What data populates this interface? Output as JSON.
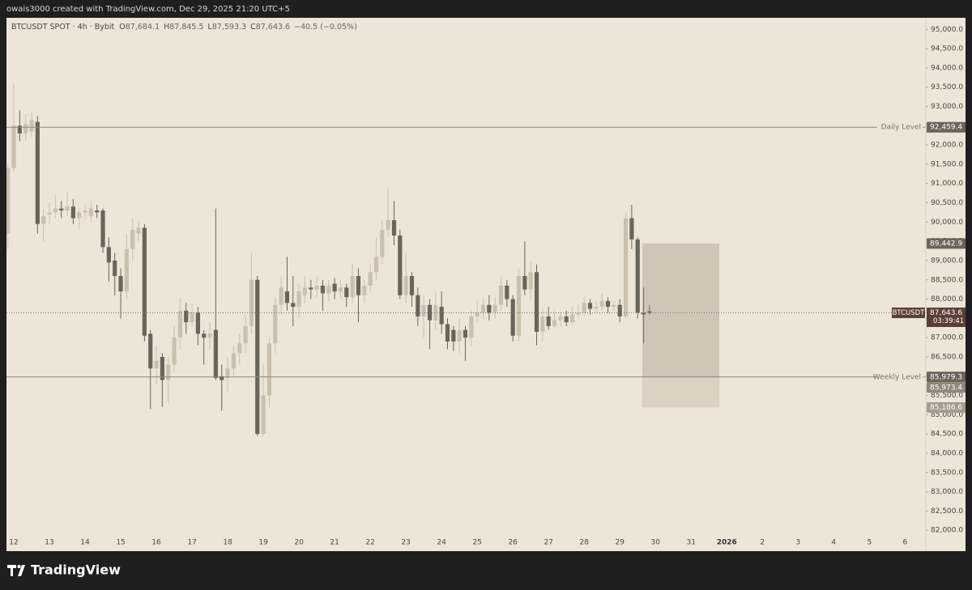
{
  "header": {
    "credit": "owais3000 created with TradingView.com, Dec 29, 2025 21:20 UTC+5",
    "symbol": "BTCUSDT SPOT · 4h · Bybit",
    "ohlc": [
      {
        "key": "O",
        "label": "87,684.1"
      },
      {
        "key": "H",
        "label": "87,845.5"
      },
      {
        "key": "L",
        "label": "87,593.3"
      },
      {
        "key": "C",
        "label": "87,643.6"
      }
    ],
    "change": "−40.5 (−0.05%)"
  },
  "footer": {
    "brand": "TradingView"
  },
  "chart_data": {
    "type": "candlestick",
    "up_color": "#cbc0b0",
    "down_color": "#6b645b",
    "grid": false,
    "ylim": [
      81900,
      95300
    ],
    "yticks": [
      {
        "value": 82000,
        "label": "82,000.0"
      },
      {
        "value": 82500,
        "label": "82,500.0"
      },
      {
        "value": 83000,
        "label": "83,000.0"
      },
      {
        "value": 83500,
        "label": "83,500.0"
      },
      {
        "value": 84000,
        "label": "84,000.0"
      },
      {
        "value": 84500,
        "label": "84,500.0"
      },
      {
        "value": 85000,
        "label": "85,000.0"
      },
      {
        "value": 85500,
        "label": "85,500.0"
      },
      {
        "value": 86000,
        "label": "86,000.0"
      },
      {
        "value": 86500,
        "label": "86,500.0"
      },
      {
        "value": 87000,
        "label": "87,000.0"
      },
      {
        "value": 87500,
        "label": "87,500.0"
      },
      {
        "value": 88000,
        "label": "88,000.0"
      },
      {
        "value": 88500,
        "label": "88,500.0"
      },
      {
        "value": 89000,
        "label": "89,000.0"
      },
      {
        "value": 89500,
        "label": "89,500.0"
      },
      {
        "value": 90000,
        "label": "90,000.0"
      },
      {
        "value": 90500,
        "label": "90,500.0"
      },
      {
        "value": 91000,
        "label": "91,000.0"
      },
      {
        "value": 91500,
        "label": "91,500.0"
      },
      {
        "value": 92000,
        "label": "92,000.0"
      },
      {
        "value": 92500,
        "label": "92,500.0"
      },
      {
        "value": 93000,
        "label": "93,000.0"
      },
      {
        "value": 93500,
        "label": "93,500.0"
      },
      {
        "value": 94000,
        "label": "94,000.0"
      },
      {
        "value": 94500,
        "label": "94,500.0"
      },
      {
        "value": 95000,
        "label": "95,000.0"
      }
    ],
    "categories": [
      null,
      "12",
      null,
      null,
      null,
      null,
      null,
      "13",
      null,
      null,
      null,
      null,
      null,
      "14",
      null,
      null,
      null,
      null,
      null,
      "15",
      null,
      null,
      null,
      null,
      null,
      "16",
      null,
      null,
      null,
      null,
      null,
      "17",
      null,
      null,
      null,
      null,
      null,
      "18",
      null,
      null,
      null,
      null,
      null,
      "19",
      null,
      null,
      null,
      null,
      null,
      "20",
      null,
      null,
      null,
      null,
      null,
      "21",
      null,
      null,
      null,
      null,
      null,
      "22",
      null,
      null,
      null,
      null,
      null,
      "23",
      null,
      null,
      null,
      null,
      null,
      "24",
      null,
      null,
      null,
      null,
      null,
      "25",
      null,
      null,
      null,
      null,
      null,
      "26",
      null,
      null,
      null,
      null,
      null,
      "27",
      null,
      null,
      null,
      null,
      null,
      "28",
      null,
      null,
      null,
      null,
      null,
      "29",
      null,
      null,
      null,
      null,
      null,
      "30",
      null,
      null,
      null,
      null,
      null,
      "31",
      null,
      null,
      null,
      null,
      null,
      "2026",
      null,
      null,
      null,
      null,
      null,
      "2",
      null,
      null,
      null,
      null,
      null,
      "3",
      null,
      null,
      null,
      null,
      null,
      "4",
      null,
      null,
      null,
      null,
      null,
      "5",
      null,
      null,
      null,
      null,
      null,
      "6",
      null,
      null,
      null
    ],
    "open": [
      89700,
      91400,
      92500,
      92300,
      92350,
      92600,
      89950,
      90200,
      90250,
      90350,
      90300,
      90400,
      90100,
      90250,
      90150,
      90300,
      90300,
      89350,
      89000,
      88600,
      88200,
      89300,
      89700,
      89850,
      87100,
      86200,
      86500,
      85900,
      86300,
      87000,
      87700,
      87400,
      87650,
      87100,
      87000,
      87200,
      86000,
      85950,
      86200,
      86600,
      86850,
      87300,
      88500,
      84500,
      85500,
      86850,
      87850,
      88200,
      87900,
      87800,
      88100,
      88300,
      88250,
      88350,
      88150,
      88400,
      88200,
      88300,
      88050,
      88600,
      88100,
      88350,
      88700,
      89100,
      89800,
      90050,
      89650,
      88100,
      88600,
      88100,
      87550,
      87850,
      87450,
      87800,
      87350,
      87200,
      86900,
      87200,
      87000,
      87550,
      87650,
      87850,
      87650,
      87850,
      88350,
      88000,
      87050,
      88600,
      88250,
      88700,
      87150,
      87550,
      87300,
      87450,
      87550,
      87400,
      87600,
      87650,
      87900,
      87750,
      87800,
      87950,
      87800,
      87850,
      87550,
      90100,
      89550,
      87650,
      87684.1,
      null,
      null,
      null,
      null,
      null,
      null,
      null,
      null,
      null,
      null,
      null,
      null,
      null,
      null,
      null,
      null,
      null,
      null,
      null,
      null,
      null,
      null,
      null,
      null,
      null,
      null,
      null,
      null,
      null,
      null,
      null,
      null,
      null,
      null,
      null,
      null,
      null,
      null,
      null,
      null,
      null,
      null,
      null,
      null,
      null,
      null
    ],
    "high": [
      91500,
      93600,
      92900,
      92800,
      92850,
      92750,
      90350,
      90500,
      90700,
      90550,
      90800,
      90600,
      90350,
      90450,
      90550,
      90450,
      90350,
      89600,
      89200,
      88800,
      89700,
      90100,
      90000,
      89950,
      87200,
      86800,
      86600,
      86500,
      87300,
      88050,
      87900,
      87900,
      87800,
      87200,
      87400,
      90350,
      86300,
      86500,
      86800,
      87100,
      87600,
      89200,
      88600,
      86300,
      87000,
      88050,
      88600,
      89100,
      88600,
      88400,
      88600,
      88500,
      88600,
      88500,
      88500,
      88550,
      88500,
      88400,
      88900,
      88800,
      88500,
      88900,
      89600,
      90050,
      90900,
      90550,
      89800,
      89200,
      88700,
      88300,
      88100,
      88000,
      88200,
      88200,
      87500,
      87300,
      87500,
      87300,
      87700,
      87950,
      88050,
      88100,
      88050,
      88600,
      88500,
      88100,
      88800,
      89500,
      88950,
      88900,
      87750,
      87800,
      87700,
      87650,
      87700,
      87800,
      87850,
      88050,
      88000,
      87950,
      88150,
      88050,
      87950,
      88000,
      90250,
      90450,
      89600,
      88300,
      87845.5,
      null,
      null,
      null,
      null,
      null,
      null,
      null,
      null,
      null,
      null,
      null,
      null,
      null,
      null,
      null,
      null,
      null,
      null,
      null,
      null,
      null,
      null,
      null,
      null,
      null,
      null,
      null,
      null,
      null,
      null,
      null,
      null,
      null,
      null,
      null,
      null,
      null,
      null,
      null,
      null,
      null,
      null,
      null,
      null,
      null,
      null
    ],
    "low": [
      89300,
      91300,
      92100,
      92100,
      92200,
      89700,
      89500,
      89950,
      90100,
      90100,
      90150,
      89950,
      89800,
      90050,
      90000,
      90100,
      89200,
      88450,
      88100,
      87500,
      88000,
      89000,
      89500,
      86900,
      85150,
      85800,
      85200,
      85300,
      86100,
      86700,
      87100,
      87300,
      86800,
      86300,
      86700,
      85900,
      85100,
      85600,
      86000,
      86300,
      86600,
      87100,
      84450,
      84450,
      85200,
      86600,
      87600,
      87700,
      87300,
      87500,
      87900,
      88000,
      88050,
      87700,
      87950,
      88000,
      88000,
      87800,
      87900,
      87400,
      87900,
      88200,
      88500,
      88900,
      89600,
      89400,
      88000,
      87900,
      87800,
      87300,
      87000,
      86700,
      87200,
      87100,
      86700,
      86650,
      86600,
      86400,
      86800,
      87400,
      87500,
      87450,
      87500,
      87700,
      87800,
      86900,
      86900,
      88100,
      88000,
      86800,
      86900,
      87200,
      87250,
      87300,
      87300,
      87350,
      87500,
      87550,
      87600,
      87650,
      87700,
      87650,
      87700,
      87400,
      87500,
      89300,
      87500,
      86850,
      87593.3,
      null,
      null,
      null,
      null,
      null,
      null,
      null,
      null,
      null,
      null,
      null,
      null,
      null,
      null,
      null,
      null,
      null,
      null,
      null,
      null,
      null,
      null,
      null,
      null,
      null,
      null,
      null,
      null,
      null,
      null,
      null,
      null,
      null,
      null,
      null,
      null,
      null,
      null,
      null,
      null,
      null,
      null,
      null,
      null,
      null,
      null
    ],
    "close": [
      91400,
      92500,
      92300,
      92550,
      92650,
      89950,
      90150,
      90250,
      90350,
      90300,
      90400,
      90100,
      90250,
      90300,
      90350,
      90250,
      89350,
      88950,
      88600,
      88200,
      89300,
      89800,
      89850,
      87050,
      86200,
      86400,
      85900,
      86300,
      87000,
      87700,
      87400,
      87650,
      87100,
      87000,
      87100,
      85950,
      85900,
      86200,
      86600,
      86850,
      87300,
      88500,
      84500,
      85500,
      86850,
      87850,
      88300,
      87900,
      87800,
      88200,
      88300,
      88250,
      88350,
      88150,
      88350,
      88200,
      88300,
      88050,
      88600,
      88100,
      88350,
      88700,
      89100,
      89800,
      90050,
      89650,
      88100,
      88600,
      88100,
      87550,
      87850,
      87450,
      87850,
      87350,
      86900,
      86900,
      87200,
      87000,
      87550,
      87650,
      87850,
      87650,
      87850,
      88350,
      88000,
      87050,
      88600,
      88250,
      88700,
      87150,
      87550,
      87300,
      87450,
      87550,
      87400,
      87600,
      87650,
      87900,
      87750,
      87800,
      87950,
      87800,
      87850,
      87550,
      90100,
      89550,
      87650,
      87600,
      87643.6,
      null,
      null,
      null,
      null,
      null,
      null,
      null,
      null,
      null,
      null,
      null,
      null,
      null,
      null,
      null,
      null,
      null,
      null,
      null,
      null,
      null,
      null,
      null,
      null,
      null,
      null,
      null,
      null,
      null,
      null,
      null,
      null,
      null,
      null,
      null,
      null,
      null,
      null,
      null,
      null,
      null,
      null,
      null,
      null,
      null,
      null
    ],
    "levels": [
      {
        "name": "Daily Level",
        "value": 92459.4,
        "label": "92,459.4"
      },
      {
        "name": "Weekly Level",
        "value": 85979.3,
        "label": "85,979.3"
      }
    ],
    "last_price": {
      "name": "BTCUSDT",
      "value": 87643.6,
      "label": "87,643.6",
      "countdown": "03:39:41"
    },
    "position": {
      "top": {
        "value": 89442.9,
        "label": "89,442.9"
      },
      "entry": {
        "value": 85973.4,
        "label": "85,973.4"
      },
      "bottom": {
        "value": 85186.6,
        "label": "85,186.6"
      }
    }
  }
}
